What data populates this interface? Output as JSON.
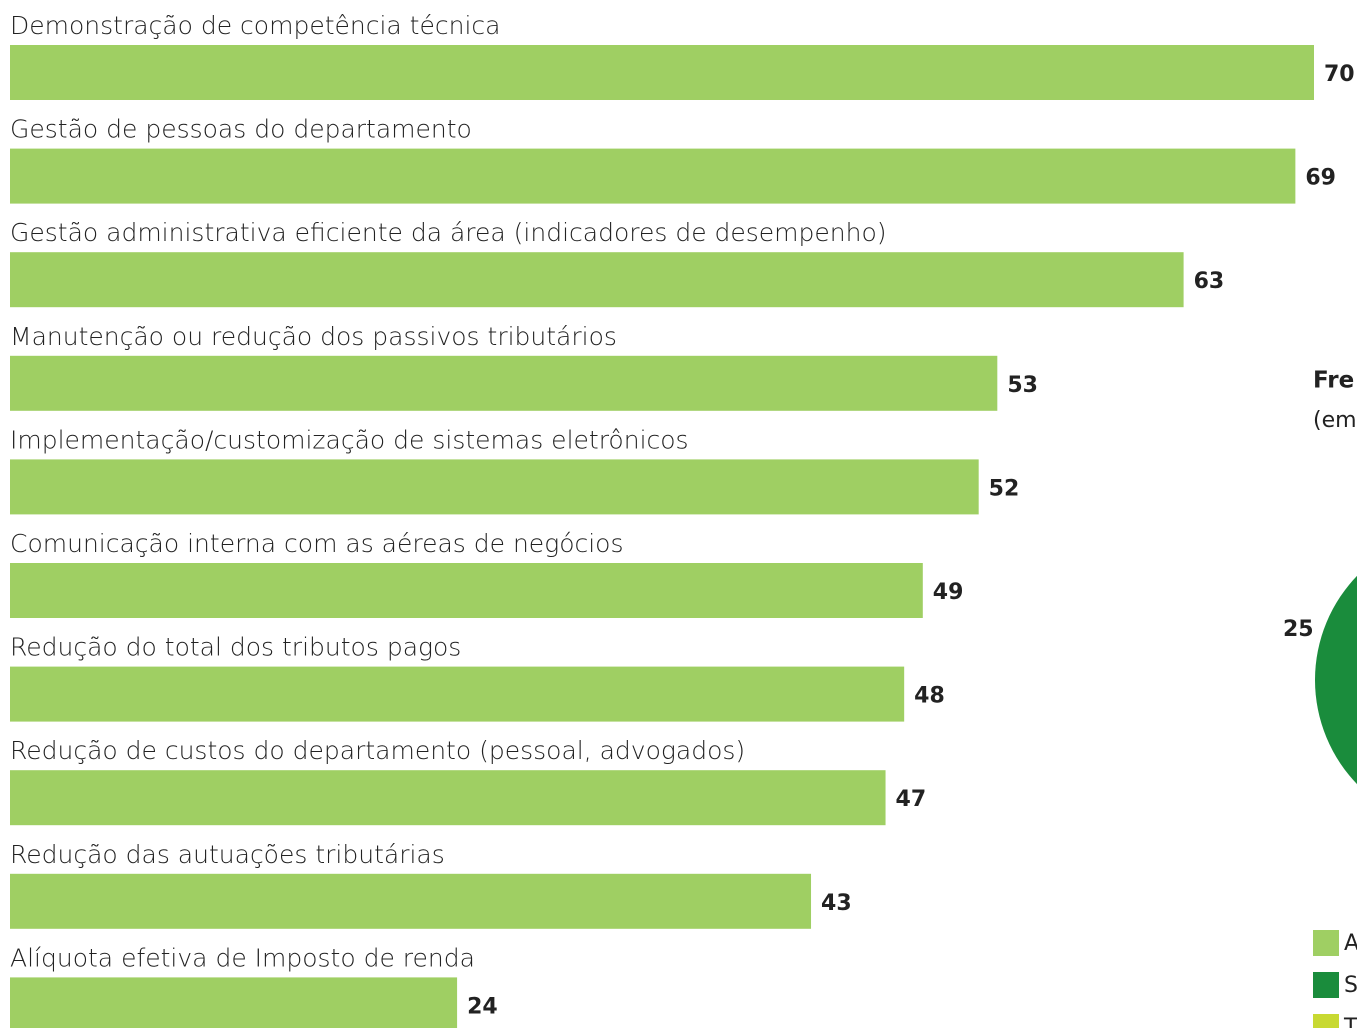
{
  "chart_data": [
    {
      "type": "bar",
      "orientation": "horizontal",
      "color": "#9fcf63",
      "categories": [
        "Demonstração de competência técnica",
        "Gestão de pessoas do departamento",
        "Gestão administrativa eficiente da área (indicadores de desempenho)",
        "Manutenção ou redução dos passivos tributários",
        "Implementação/customização de sistemas eletrônicos",
        "Comunicação interna com as aéreas de negócios",
        "Redução do total dos tributos pagos",
        "Redução de custos do departamento (pessoal, advogados)",
        "Redução das autuações tributárias",
        "Alíquota efetiva de Imposto de renda"
      ],
      "values": [
        70,
        69,
        63,
        53,
        52,
        49,
        48,
        47,
        43,
        24
      ],
      "xlim": [
        0,
        70
      ]
    },
    {
      "type": "pie",
      "title": "Fre",
      "subtitle": "(em",
      "categories": [
        "A",
        "S",
        "T"
      ],
      "colors": [
        "#9fcf63",
        "#1a8c3c",
        "#c8d932"
      ],
      "values": [
        null,
        25,
        null
      ]
    }
  ]
}
